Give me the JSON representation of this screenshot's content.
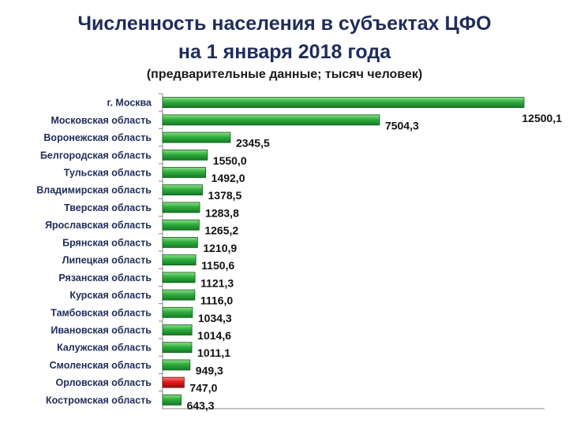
{
  "title_line1": "Численность населения в субъектах ЦФО",
  "title_line2": "на 1 января 2018 года",
  "subtitle": "(предварительные данные; тысяч человек)",
  "colors": {
    "title": "#1f2d5a",
    "bar_normal": "#2fae3e",
    "bar_highlight": "#e01b1b"
  },
  "chart_data": {
    "type": "bar",
    "orientation": "horizontal",
    "title": "Численность населения в субъектах ЦФО на 1 января 2018 года",
    "subtitle": "(предварительные данные; тысяч человек)",
    "categories": [
      "г. Москва",
      "Московская область",
      "Воронежская область",
      "Белгородская область",
      "Тульская область",
      "Владимирская область",
      "Тверская область",
      "Ярославская область",
      "Брянская область",
      "Липецкая область",
      "Рязанская область",
      "Курская область",
      "Тамбовская область",
      "Ивановская область",
      "Калужская область",
      "Смоленская область",
      "Орловская область",
      "Костромская область"
    ],
    "values": [
      12500.1,
      7504.3,
      2345.5,
      1550.0,
      1492.0,
      1378.5,
      1283.8,
      1265.2,
      1210.9,
      1150.6,
      1121.3,
      1116.0,
      1034.3,
      1014.6,
      1011.1,
      949.3,
      747.0,
      643.3
    ],
    "value_labels": [
      "12500,1",
      "7504,3",
      "2345,5",
      "1550,0",
      "1492,0",
      "1378,5",
      "1283,8",
      "1265,2",
      "1210,9",
      "1150,6",
      "1121,3",
      "1116,0",
      "1034,3",
      "1014,6",
      "1011,1",
      "949,3",
      "747,0",
      "643,3"
    ],
    "highlighted": [
      "Орловская область"
    ],
    "xlim": [
      0,
      12500.1
    ],
    "xlabel": "",
    "ylabel": "",
    "grid": false,
    "legend": "none"
  }
}
